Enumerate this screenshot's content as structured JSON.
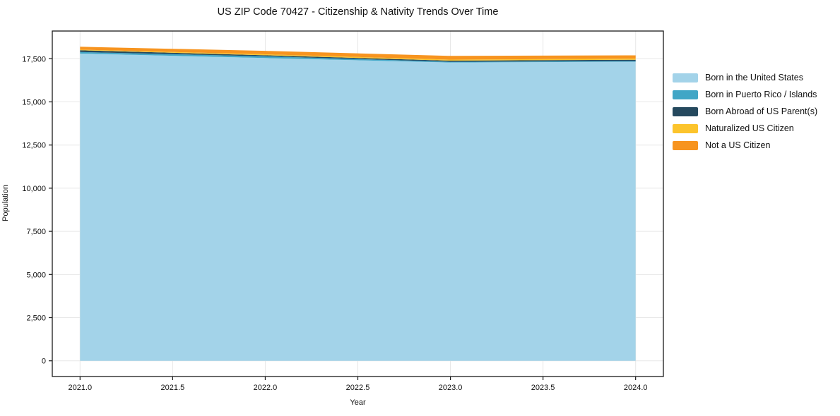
{
  "chart_data": {
    "type": "area",
    "stacked": true,
    "title": "US ZIP Code 70427 - Citizenship & Nativity Trends Over Time",
    "xlabel": "Year",
    "ylabel": "Population",
    "x": [
      2021,
      2022,
      2023,
      2024
    ],
    "series": [
      {
        "name": "Born in the United States",
        "color": "#A3D3E9",
        "values": [
          17800,
          17540,
          17280,
          17330
        ]
      },
      {
        "name": "Born in Puerto Rico / Islands",
        "color": "#41A6C6",
        "values": [
          90,
          100,
          45,
          35
        ]
      },
      {
        "name": "Born Abroad of US Parent(s)",
        "color": "#25495E",
        "values": [
          100,
          60,
          65,
          75
        ]
      },
      {
        "name": "Naturalized US Citizen",
        "color": "#FCC42C",
        "values": [
          35,
          55,
          60,
          70
        ]
      },
      {
        "name": "Not a US Citizen",
        "color": "#F7941F",
        "values": [
          170,
          200,
          215,
          185
        ]
      }
    ],
    "xlim": [
      2020.85,
      2024.15
    ],
    "ylim": [
      -910,
      19105
    ],
    "xticks": {
      "values": [
        2021.0,
        2021.5,
        2022.0,
        2022.5,
        2023.0,
        2023.5,
        2024.0
      ],
      "labels": [
        "2021.0",
        "2021.5",
        "2022.0",
        "2022.5",
        "2023.0",
        "2023.5",
        "2024.0"
      ]
    },
    "yticks": {
      "values": [
        0,
        2500,
        5000,
        7500,
        10000,
        12500,
        15000,
        17500
      ],
      "labels": [
        "0",
        "2,500",
        "5,000",
        "7,500",
        "10,000",
        "12,500",
        "15,000",
        "17,500"
      ]
    },
    "grid": true,
    "legend_position": "right",
    "colors": {
      "grid": "#e7e7e7",
      "spine": "#1a1a1a",
      "tick_text": "#111111",
      "background": "#ffffff"
    }
  }
}
